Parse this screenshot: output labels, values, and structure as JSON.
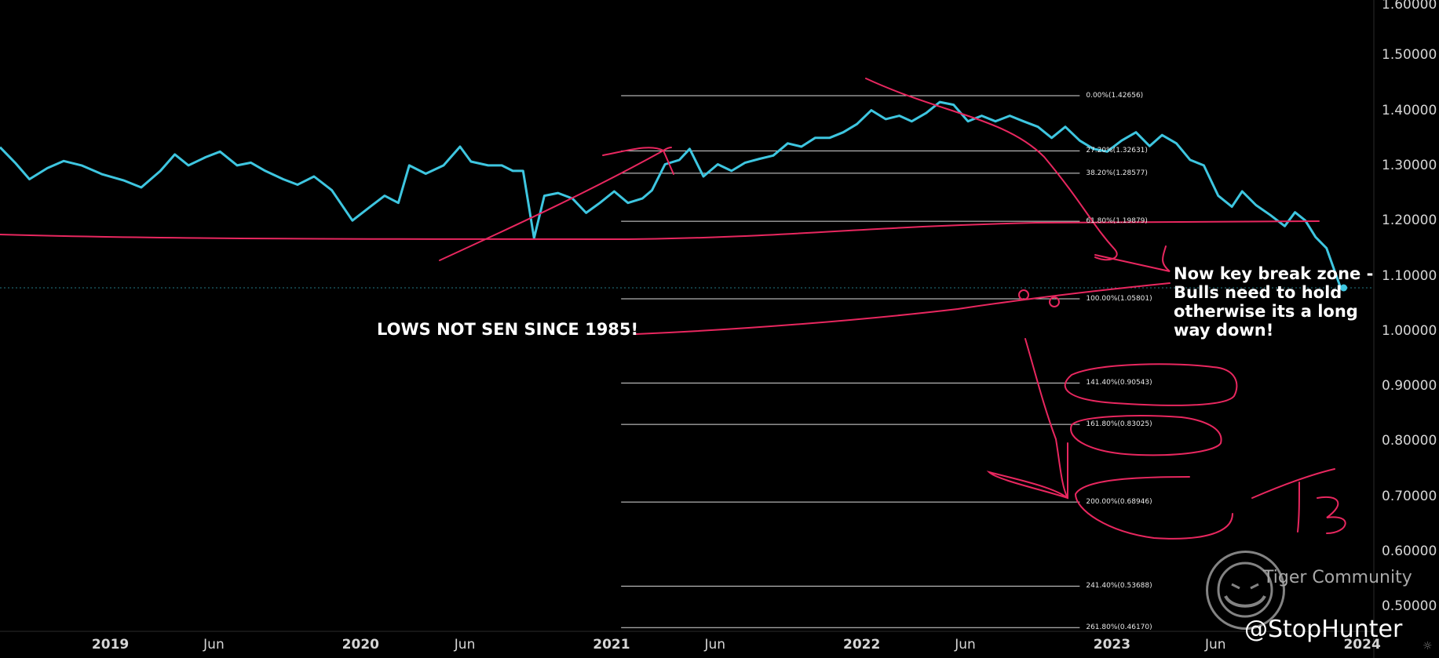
{
  "chart_data": {
    "type": "line",
    "title": "",
    "xlabel": "",
    "ylabel": "",
    "x_range": [
      "2018-07-24",
      "2024-01-18"
    ],
    "ylim": [
      0.455,
      1.6
    ],
    "y_ticks": [
      "1.60000",
      "1.50000",
      "1.40000",
      "1.30000",
      "1.20000",
      "1.10000",
      "1.00000",
      "0.90000",
      "0.80000",
      "0.70000",
      "0.60000",
      "0.50000"
    ],
    "x_ticks": [
      {
        "label": "2019",
        "date": "2019-01-01",
        "year": true
      },
      {
        "label": "Jun",
        "date": "2019-06-01",
        "year": false
      },
      {
        "label": "2020",
        "date": "2020-01-01",
        "year": true
      },
      {
        "label": "Jun",
        "date": "2020-06-01",
        "year": false
      },
      {
        "label": "2021",
        "date": "2021-01-01",
        "year": true
      },
      {
        "label": "Jun",
        "date": "2021-06-01",
        "year": false
      },
      {
        "label": "2022",
        "date": "2022-01-01",
        "year": true
      },
      {
        "label": "Jun",
        "date": "2022-06-01",
        "year": false
      },
      {
        "label": "2023",
        "date": "2023-01-01",
        "year": true
      },
      {
        "label": "Jun",
        "date": "2023-06-01",
        "year": false
      },
      {
        "label": "2024",
        "date": "2024-01-01",
        "year": true
      }
    ],
    "series": [
      {
        "color": "#3ec6e0",
        "points": [
          [
            "2018-07-24",
            1.333
          ],
          [
            "2018-08-15",
            1.305
          ],
          [
            "2018-09-05",
            1.275
          ],
          [
            "2018-10-01",
            1.295
          ],
          [
            "2018-10-25",
            1.308
          ],
          [
            "2018-11-20",
            1.3
          ],
          [
            "2018-12-20",
            1.284
          ],
          [
            "2019-01-20",
            1.273
          ],
          [
            "2019-02-15",
            1.26
          ],
          [
            "2019-03-15",
            1.29
          ],
          [
            "2019-04-05",
            1.32
          ],
          [
            "2019-04-25",
            1.3
          ],
          [
            "2019-05-20",
            1.315
          ],
          [
            "2019-06-10",
            1.325
          ],
          [
            "2019-07-05",
            1.3
          ],
          [
            "2019-07-25",
            1.305
          ],
          [
            "2019-08-15",
            1.29
          ],
          [
            "2019-09-10",
            1.275
          ],
          [
            "2019-10-01",
            1.265
          ],
          [
            "2019-10-25",
            1.28
          ],
          [
            "2019-11-20",
            1.255
          ],
          [
            "2019-12-20",
            1.2
          ],
          [
            "2020-01-15",
            1.225
          ],
          [
            "2020-02-05",
            1.245
          ],
          [
            "2020-02-25",
            1.232
          ],
          [
            "2020-03-12",
            1.3
          ],
          [
            "2020-04-05",
            1.285
          ],
          [
            "2020-05-01",
            1.3
          ],
          [
            "2020-05-25",
            1.334
          ],
          [
            "2020-06-10",
            1.307
          ],
          [
            "2020-07-05",
            1.3
          ],
          [
            "2020-07-25",
            1.3
          ],
          [
            "2020-08-10",
            1.29
          ],
          [
            "2020-08-25",
            1.29
          ],
          [
            "2020-09-10",
            1.168
          ],
          [
            "2020-09-25",
            1.245
          ],
          [
            "2020-10-15",
            1.25
          ],
          [
            "2020-11-05",
            1.24
          ],
          [
            "2020-11-25",
            1.214
          ],
          [
            "2020-12-15",
            1.232
          ],
          [
            "2021-01-05",
            1.253
          ],
          [
            "2021-01-25",
            1.232
          ],
          [
            "2021-02-15",
            1.24
          ],
          [
            "2021-03-01",
            1.255
          ],
          [
            "2021-03-20",
            1.302
          ],
          [
            "2021-04-10",
            1.31
          ],
          [
            "2021-04-25",
            1.33
          ],
          [
            "2021-05-15",
            1.28
          ],
          [
            "2021-06-05",
            1.302
          ],
          [
            "2021-06-25",
            1.29
          ],
          [
            "2021-07-15",
            1.305
          ],
          [
            "2021-08-05",
            1.312
          ],
          [
            "2021-08-25",
            1.318
          ],
          [
            "2021-09-15",
            1.34
          ],
          [
            "2021-10-05",
            1.334
          ],
          [
            "2021-10-25",
            1.35
          ],
          [
            "2021-11-15",
            1.35
          ],
          [
            "2021-12-05",
            1.36
          ],
          [
            "2021-12-25",
            1.375
          ],
          [
            "2022-01-15",
            1.4
          ],
          [
            "2022-02-05",
            1.384
          ],
          [
            "2022-02-25",
            1.39
          ],
          [
            "2022-03-15",
            1.38
          ],
          [
            "2022-04-05",
            1.395
          ],
          [
            "2022-04-25",
            1.415
          ],
          [
            "2022-05-15",
            1.41
          ],
          [
            "2022-06-05",
            1.38
          ],
          [
            "2022-06-25",
            1.39
          ],
          [
            "2022-07-15",
            1.38
          ],
          [
            "2022-08-05",
            1.39
          ],
          [
            "2022-08-25",
            1.38
          ],
          [
            "2022-09-15",
            1.37
          ],
          [
            "2022-10-05",
            1.35
          ],
          [
            "2022-10-25",
            1.37
          ],
          [
            "2022-11-15",
            1.345
          ],
          [
            "2022-12-05",
            1.33
          ],
          [
            "2022-12-25",
            1.325
          ],
          [
            "2023-01-15",
            1.345
          ],
          [
            "2023-02-05",
            1.36
          ],
          [
            "2023-02-25",
            1.335
          ],
          [
            "2023-03-15",
            1.355
          ],
          [
            "2023-04-05",
            1.34
          ],
          [
            "2023-04-25",
            1.31
          ],
          [
            "2023-05-15",
            1.3
          ],
          [
            "2023-06-05",
            1.245
          ],
          [
            "2023-06-25",
            1.225
          ],
          [
            "2023-07-10",
            1.253
          ],
          [
            "2023-07-30",
            1.228
          ],
          [
            "2023-08-20",
            1.21
          ],
          [
            "2023-09-10",
            1.19
          ],
          [
            "2023-09-25",
            1.215
          ],
          [
            "2023-10-10",
            1.2
          ],
          [
            "2023-10-25",
            1.17
          ],
          [
            "2023-11-10",
            1.15
          ],
          [
            "2023-11-30",
            1.08
          ],
          [
            "2023-12-05",
            1.078
          ]
        ]
      }
    ],
    "fibonacci_levels": [
      {
        "label": "0.00%(1.42656)",
        "value": 1.42656
      },
      {
        "label": "27.20%(1.32631)",
        "value": 1.32631
      },
      {
        "label": "38.20%(1.28577)",
        "value": 1.28577
      },
      {
        "label": "61.80%(1.19879)",
        "value": 1.19879
      },
      {
        "label": "100.00%(1.05801)",
        "value": 1.05801
      },
      {
        "label": "141.40%(0.90543)",
        "value": 0.90543
      },
      {
        "label": "161.80%(0.83025)",
        "value": 0.83025
      },
      {
        "label": "200.00%(0.68946)",
        "value": 0.68946
      },
      {
        "label": "241.40%(0.53688)",
        "value": 0.53688
      },
      {
        "label": "261.80%(0.46170)",
        "value": 0.4617
      }
    ],
    "current_price_level": 1.078,
    "colors": {
      "price_line": "#3ec6e0",
      "drawings": "#e8275f",
      "fib_lines": "#dcdcdc",
      "axis_text": "#d6d6d6",
      "background": "#000000"
    }
  },
  "annotations": {
    "lows": "LOWS NOT SEN SINCE 1985!",
    "break_zone": "Now key break zone - Bulls need to hold otherwise its a long way down!"
  },
  "watermark": {
    "text": "Tiger Community",
    "icon": "tiger-logo-icon"
  },
  "handle": "@StopHunter",
  "settings_icon": "sun-icon"
}
